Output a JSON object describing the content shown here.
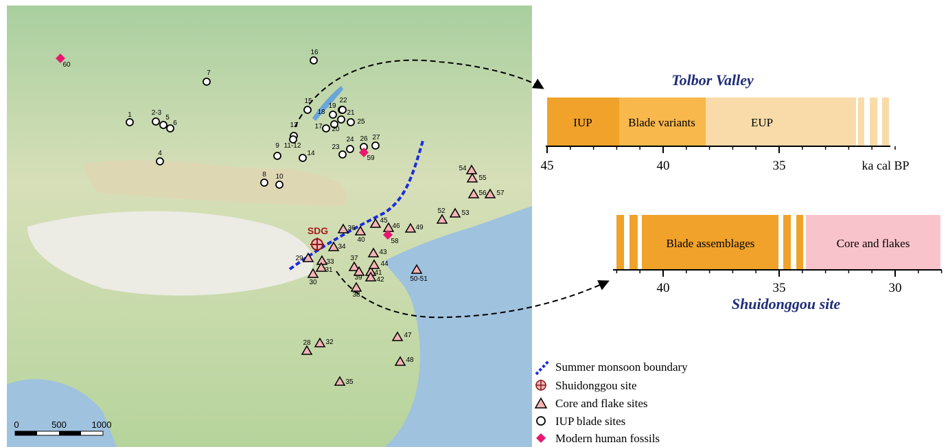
{
  "map": {
    "scale_labels": [
      "0",
      "500",
      "1000"
    ],
    "sdg_label": "SDG",
    "sites": [
      {
        "label": "60",
        "kind": "diamond"
      },
      {
        "label": "16",
        "kind": "circle"
      },
      {
        "label": "7",
        "kind": "circle"
      },
      {
        "label": "15",
        "kind": "circle"
      },
      {
        "label": "1",
        "kind": "circle"
      },
      {
        "label": "2-3",
        "kind": "circle"
      },
      {
        "label": "5",
        "kind": "circle"
      },
      {
        "label": "6",
        "kind": "circle"
      },
      {
        "label": "18",
        "kind": "circle"
      },
      {
        "label": "19",
        "kind": "circle"
      },
      {
        "label": "22",
        "kind": "circle"
      },
      {
        "label": "21",
        "kind": "circle"
      },
      {
        "label": "25",
        "kind": "circle"
      },
      {
        "label": "17",
        "kind": "circle"
      },
      {
        "label": "20",
        "kind": "circle"
      },
      {
        "label": "13",
        "kind": "circle"
      },
      {
        "label": "11-12",
        "kind": "circle"
      },
      {
        "label": "9",
        "kind": "circle"
      },
      {
        "label": "14",
        "kind": "circle"
      },
      {
        "label": "23",
        "kind": "circle"
      },
      {
        "label": "24",
        "kind": "circle"
      },
      {
        "label": "26",
        "kind": "circle"
      },
      {
        "label": "59",
        "kind": "diamond"
      },
      {
        "label": "27",
        "kind": "circle"
      },
      {
        "label": "4",
        "kind": "circle"
      },
      {
        "label": "8",
        "kind": "circle"
      },
      {
        "label": "10",
        "kind": "circle"
      },
      {
        "label": "54",
        "kind": "triangle"
      },
      {
        "label": "55",
        "kind": "triangle"
      },
      {
        "label": "56",
        "kind": "triangle"
      },
      {
        "label": "57",
        "kind": "triangle"
      },
      {
        "label": "52",
        "kind": "triangle"
      },
      {
        "label": "53",
        "kind": "triangle"
      },
      {
        "label": "49",
        "kind": "triangle"
      },
      {
        "label": "45",
        "kind": "triangle"
      },
      {
        "label": "46",
        "kind": "triangle"
      },
      {
        "label": "58",
        "kind": "diamond"
      },
      {
        "label": "36",
        "kind": "triangle"
      },
      {
        "label": "40",
        "kind": "triangle"
      },
      {
        "label": "34",
        "kind": "triangle"
      },
      {
        "label": "29",
        "kind": "triangle"
      },
      {
        "label": "33",
        "kind": "triangle"
      },
      {
        "label": "31",
        "kind": "triangle"
      },
      {
        "label": "30",
        "kind": "triangle"
      },
      {
        "label": "37",
        "kind": "triangle"
      },
      {
        "label": "39",
        "kind": "triangle"
      },
      {
        "label": "41",
        "kind": "triangle"
      },
      {
        "label": "44",
        "kind": "triangle"
      },
      {
        "label": "43",
        "kind": "triangle"
      },
      {
        "label": "42",
        "kind": "triangle"
      },
      {
        "label": "38",
        "kind": "triangle"
      },
      {
        "label": "50-51",
        "kind": "triangle"
      },
      {
        "label": "47",
        "kind": "triangle"
      },
      {
        "label": "48",
        "kind": "triangle"
      },
      {
        "label": "28",
        "kind": "triangle"
      },
      {
        "label": "32",
        "kind": "triangle"
      },
      {
        "label": "35",
        "kind": "triangle"
      }
    ]
  },
  "tolbor": {
    "title": "Tolbor Valley",
    "segments": [
      "IUP",
      "Blade variants",
      "EUP"
    ],
    "ticks": [
      45,
      40,
      35
    ],
    "unit": "ka cal BP"
  },
  "shuidonggou": {
    "title": "Shuidonggou site",
    "segments": [
      "Blade assemblages",
      "Core and flakes"
    ],
    "ticks": [
      40,
      35,
      30
    ]
  },
  "legend": [
    "Summer monsoon boundary",
    "Shuidonggou site",
    "Core and flake sites",
    "IUP blade sites",
    "Modern human fossils"
  ]
}
